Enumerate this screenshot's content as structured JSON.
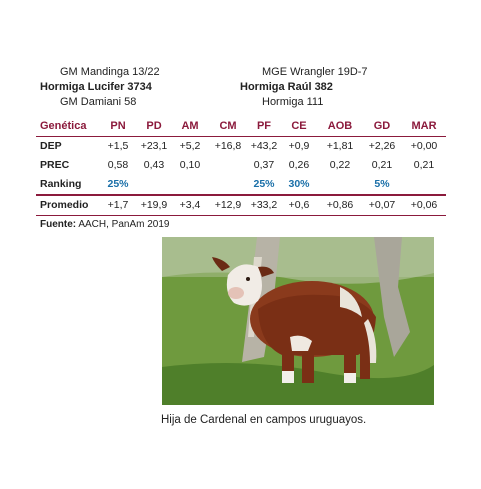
{
  "pedigree": {
    "sire_sire": "GM Mandinga 13/22",
    "sire": "Hormiga Lucifer 3734",
    "sire_dam": "GM Damiani 58",
    "dam_sire": "MGE Wrangler 19D-7",
    "dam": "Hormiga Raúl 382",
    "dam_dam": "Hormiga 111"
  },
  "table": {
    "header_label": "Genética",
    "columns": [
      "PN",
      "PD",
      "AM",
      "CM",
      "PF",
      "CE",
      "AOB",
      "GD",
      "MAR"
    ],
    "rows": [
      {
        "label": "DEP",
        "values": [
          "+1,5",
          "+23,1",
          "+5,2",
          "+16,8",
          "+43,2",
          "+0,9",
          "+1,81",
          "+2,26",
          "+0,00"
        ]
      },
      {
        "label": "PREC",
        "values": [
          "0,58",
          "0,43",
          "0,10",
          "",
          "0,37",
          "0,26",
          "0,22",
          "0,21",
          "0,21"
        ]
      },
      {
        "label": "Ranking",
        "values": [
          "25%",
          "",
          "",
          "",
          "25%",
          "30%",
          "",
          "5%",
          ""
        ]
      }
    ],
    "promedio": {
      "label": "Promedio",
      "values": [
        "+1,7",
        "+19,9",
        "+3,4",
        "+12,9",
        "+33,2",
        "+0,6",
        "+0,86",
        "+0,07",
        "+0,06"
      ]
    }
  },
  "source": {
    "label": "Fuente:",
    "text": " AACH, PanAm 2019"
  },
  "caption": "Hija de Cardenal en campos uruguayos.",
  "colors": {
    "accent": "#8b1a3c",
    "ranking": "#1a6fa8"
  }
}
